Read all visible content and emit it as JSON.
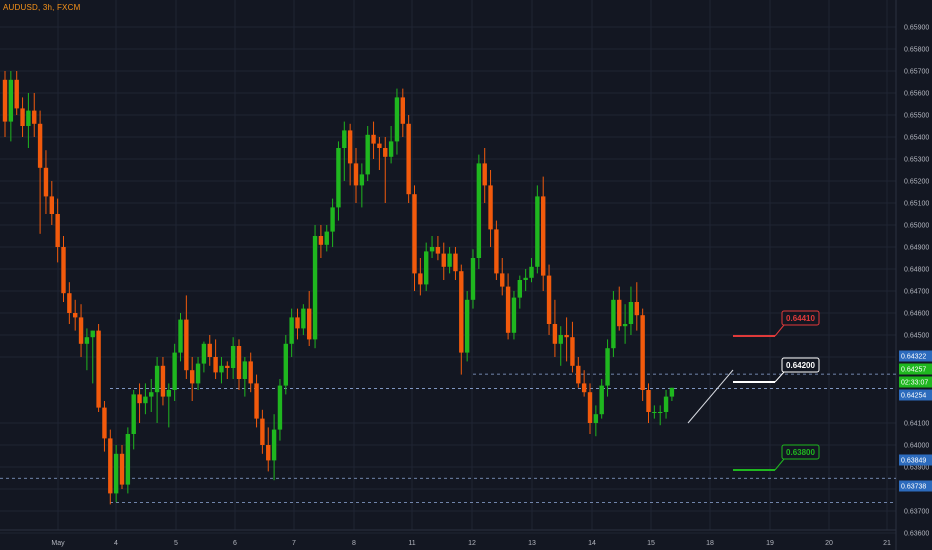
{
  "symbol": "AUDUSD, 3h, FXCM",
  "colors": {
    "background": "#131722",
    "up": "#1fb71f",
    "down": "#f25a0c",
    "grid": "#1f2433",
    "axis": "#2b3040",
    "text": "#b2b5be"
  },
  "chart_data": {
    "type": "candlestick",
    "ylim": [
      0.6355,
      0.6595
    ],
    "y_ticks": [
      "0.65900",
      "0.65800",
      "0.65700",
      "0.65600",
      "0.65500",
      "0.65400",
      "0.65300",
      "0.65200",
      "0.65100",
      "0.65000",
      "0.64900",
      "0.64800",
      "0.64700",
      "0.64600",
      "0.64500",
      "0.64400",
      "0.64100",
      "0.64000",
      "0.63900",
      "0.63800",
      "0.63700",
      "0.63600"
    ],
    "x_ticks": [
      "May",
      "4",
      "5",
      "6",
      "7",
      "8",
      "11",
      "12",
      "13",
      "14",
      "15",
      "18",
      "19",
      "20",
      "21"
    ],
    "candles": [
      [
        0.6566,
        0.657,
        0.654,
        0.6547
      ],
      [
        0.6547,
        0.657,
        0.6538,
        0.6566
      ],
      [
        0.6566,
        0.657,
        0.655,
        0.6553
      ],
      [
        0.6553,
        0.6558,
        0.654,
        0.6545
      ],
      [
        0.6545,
        0.656,
        0.6535,
        0.6552
      ],
      [
        0.6552,
        0.656,
        0.654,
        0.6546
      ],
      [
        0.6546,
        0.6552,
        0.6496,
        0.6526
      ],
      [
        0.6526,
        0.6534,
        0.6505,
        0.6513
      ],
      [
        0.6513,
        0.652,
        0.65,
        0.6505
      ],
      [
        0.6505,
        0.6512,
        0.6483,
        0.649
      ],
      [
        0.649,
        0.6495,
        0.6465,
        0.6469
      ],
      [
        0.6469,
        0.6474,
        0.6455,
        0.646
      ],
      [
        0.646,
        0.6466,
        0.6452,
        0.6458
      ],
      [
        0.6458,
        0.6464,
        0.644,
        0.6446
      ],
      [
        0.6446,
        0.6453,
        0.6434,
        0.6449
      ],
      [
        0.6449,
        0.6452,
        0.6428,
        0.6452
      ],
      [
        0.6452,
        0.6455,
        0.6415,
        0.6417
      ],
      [
        0.6417,
        0.642,
        0.6397,
        0.6403
      ],
      [
        0.6403,
        0.6407,
        0.6373,
        0.6378
      ],
      [
        0.6378,
        0.64,
        0.6374,
        0.6396
      ],
      [
        0.6396,
        0.64,
        0.638,
        0.6382
      ],
      [
        0.6382,
        0.6408,
        0.6378,
        0.6405
      ],
      [
        0.6405,
        0.6425,
        0.6398,
        0.6423
      ],
      [
        0.6423,
        0.6428,
        0.641,
        0.6419
      ],
      [
        0.6419,
        0.6428,
        0.6414,
        0.6422
      ],
      [
        0.6422,
        0.643,
        0.6415,
        0.6424
      ],
      [
        0.6424,
        0.644,
        0.641,
        0.6436
      ],
      [
        0.6436,
        0.644,
        0.6418,
        0.6422
      ],
      [
        0.6422,
        0.6428,
        0.6408,
        0.6425
      ],
      [
        0.6425,
        0.6446,
        0.642,
        0.6442
      ],
      [
        0.6442,
        0.646,
        0.6438,
        0.6457
      ],
      [
        0.6457,
        0.6468,
        0.643,
        0.6434
      ],
      [
        0.6434,
        0.644,
        0.642,
        0.6428
      ],
      [
        0.6428,
        0.644,
        0.6425,
        0.6437
      ],
      [
        0.6437,
        0.6447,
        0.6433,
        0.6446
      ],
      [
        0.6446,
        0.645,
        0.6436,
        0.644
      ],
      [
        0.644,
        0.6448,
        0.643,
        0.6433
      ],
      [
        0.6433,
        0.644,
        0.6428,
        0.6436
      ],
      [
        0.6436,
        0.6438,
        0.643,
        0.6435
      ],
      [
        0.6435,
        0.6449,
        0.643,
        0.6445
      ],
      [
        0.6445,
        0.6448,
        0.6425,
        0.643
      ],
      [
        0.643,
        0.644,
        0.6422,
        0.6438
      ],
      [
        0.6438,
        0.6442,
        0.6424,
        0.6428
      ],
      [
        0.6428,
        0.6432,
        0.6408,
        0.6412
      ],
      [
        0.6412,
        0.6416,
        0.6396,
        0.64
      ],
      [
        0.64,
        0.6408,
        0.6388,
        0.6393
      ],
      [
        0.6393,
        0.6414,
        0.6384,
        0.6407
      ],
      [
        0.6407,
        0.643,
        0.6402,
        0.6427
      ],
      [
        0.6427,
        0.645,
        0.6423,
        0.6446
      ],
      [
        0.6446,
        0.6462,
        0.644,
        0.6458
      ],
      [
        0.6458,
        0.6462,
        0.6448,
        0.6453
      ],
      [
        0.6453,
        0.6464,
        0.645,
        0.6462
      ],
      [
        0.6462,
        0.647,
        0.6445,
        0.6448
      ],
      [
        0.6448,
        0.65,
        0.6444,
        0.6495
      ],
      [
        0.6495,
        0.65,
        0.6485,
        0.6491
      ],
      [
        0.6491,
        0.65,
        0.6488,
        0.6497
      ],
      [
        0.6497,
        0.6512,
        0.649,
        0.6508
      ],
      [
        0.6508,
        0.6538,
        0.6502,
        0.6535
      ],
      [
        0.6535,
        0.6547,
        0.652,
        0.6543
      ],
      [
        0.6543,
        0.6546,
        0.6518,
        0.6528
      ],
      [
        0.6528,
        0.6535,
        0.651,
        0.6518
      ],
      [
        0.6518,
        0.6528,
        0.6508,
        0.6523
      ],
      [
        0.6523,
        0.6545,
        0.652,
        0.6541
      ],
      [
        0.6541,
        0.6547,
        0.653,
        0.6537
      ],
      [
        0.6537,
        0.654,
        0.6525,
        0.6535
      ],
      [
        0.6535,
        0.654,
        0.651,
        0.6531
      ],
      [
        0.6531,
        0.6545,
        0.6528,
        0.6538
      ],
      [
        0.6538,
        0.6562,
        0.6532,
        0.6558
      ],
      [
        0.6558,
        0.6562,
        0.654,
        0.6546
      ],
      [
        0.6546,
        0.655,
        0.651,
        0.6514
      ],
      [
        0.6514,
        0.6518,
        0.647,
        0.6478
      ],
      [
        0.6478,
        0.6485,
        0.6468,
        0.6473
      ],
      [
        0.6473,
        0.6492,
        0.647,
        0.6488
      ],
      [
        0.6488,
        0.6495,
        0.6485,
        0.649
      ],
      [
        0.649,
        0.6495,
        0.6484,
        0.6487
      ],
      [
        0.6487,
        0.6492,
        0.6475,
        0.6481
      ],
      [
        0.6481,
        0.649,
        0.6478,
        0.6487
      ],
      [
        0.6487,
        0.649,
        0.6475,
        0.6479
      ],
      [
        0.6479,
        0.6482,
        0.6432,
        0.6442
      ],
      [
        0.6442,
        0.647,
        0.6438,
        0.6466
      ],
      [
        0.6466,
        0.6489,
        0.6462,
        0.6485
      ],
      [
        0.6485,
        0.6532,
        0.648,
        0.6528
      ],
      [
        0.6528,
        0.6535,
        0.651,
        0.6518
      ],
      [
        0.6518,
        0.6525,
        0.649,
        0.6498
      ],
      [
        0.6498,
        0.6502,
        0.6475,
        0.6478
      ],
      [
        0.6478,
        0.6485,
        0.6468,
        0.6472
      ],
      [
        0.6472,
        0.6478,
        0.6448,
        0.6451
      ],
      [
        0.6451,
        0.647,
        0.6448,
        0.6467
      ],
      [
        0.6467,
        0.6477,
        0.6462,
        0.6475
      ],
      [
        0.6475,
        0.648,
        0.647,
        0.6476
      ],
      [
        0.6476,
        0.6485,
        0.6474,
        0.6481
      ],
      [
        0.6481,
        0.6518,
        0.6478,
        0.6513
      ],
      [
        0.6513,
        0.6522,
        0.647,
        0.6477
      ],
      [
        0.6477,
        0.6482,
        0.645,
        0.6455
      ],
      [
        0.6455,
        0.6466,
        0.644,
        0.6446
      ],
      [
        0.6446,
        0.6454,
        0.6436,
        0.645
      ],
      [
        0.645,
        0.6458,
        0.6438,
        0.6449
      ],
      [
        0.6449,
        0.6456,
        0.6433,
        0.6436
      ],
      [
        0.6436,
        0.644,
        0.6426,
        0.6428
      ],
      [
        0.6428,
        0.6434,
        0.6422,
        0.6424
      ],
      [
        0.6424,
        0.6428,
        0.6405,
        0.641
      ],
      [
        0.641,
        0.6418,
        0.6404,
        0.6414
      ],
      [
        0.6414,
        0.643,
        0.6412,
        0.6427
      ],
      [
        0.6427,
        0.6448,
        0.6422,
        0.6444
      ],
      [
        0.6444,
        0.647,
        0.644,
        0.6466
      ],
      [
        0.6466,
        0.6472,
        0.6452,
        0.6454
      ],
      [
        0.6454,
        0.6464,
        0.6446,
        0.6455
      ],
      [
        0.6455,
        0.6472,
        0.645,
        0.6465
      ],
      [
        0.6465,
        0.6474,
        0.6452,
        0.6459
      ],
      [
        0.6459,
        0.6462,
        0.642,
        0.6425
      ],
      [
        0.6425,
        0.6428,
        0.641,
        0.6415
      ],
      [
        0.6415,
        0.6418,
        0.6412,
        0.6415
      ],
      [
        0.6415,
        0.6418,
        0.6409,
        0.6415
      ],
      [
        0.6415,
        0.6425,
        0.6412,
        0.6422
      ],
      [
        0.6422,
        0.6426,
        0.642,
        0.6426
      ]
    ],
    "horizontal_lines": [
      {
        "price": 0.64322,
        "label": "0.64322"
      },
      {
        "price": 0.64257,
        "label": "0.64257"
      },
      {
        "price": 0.63849,
        "label": "0.63849"
      },
      {
        "price": 0.63738,
        "label": "0.63738"
      }
    ],
    "price_tags": [
      {
        "label": "0.64322",
        "color": "#2c6bbd"
      },
      {
        "label": "0.64257",
        "color": "#1fb71f"
      },
      {
        "label": "02:33:07",
        "color": "#1fb71f"
      },
      {
        "label": "0.64254",
        "color": "#2c6bbd"
      },
      {
        "label": "0.63849",
        "color": "#2c6bbd"
      },
      {
        "label": "0.63738",
        "color": "#2c6bbd"
      }
    ],
    "targets": [
      {
        "label": "0.64410",
        "color": "#e03a3a"
      },
      {
        "label": "0.64200",
        "color": "#ffffff"
      },
      {
        "label": "0.63800",
        "color": "#1fb71f"
      }
    ]
  }
}
